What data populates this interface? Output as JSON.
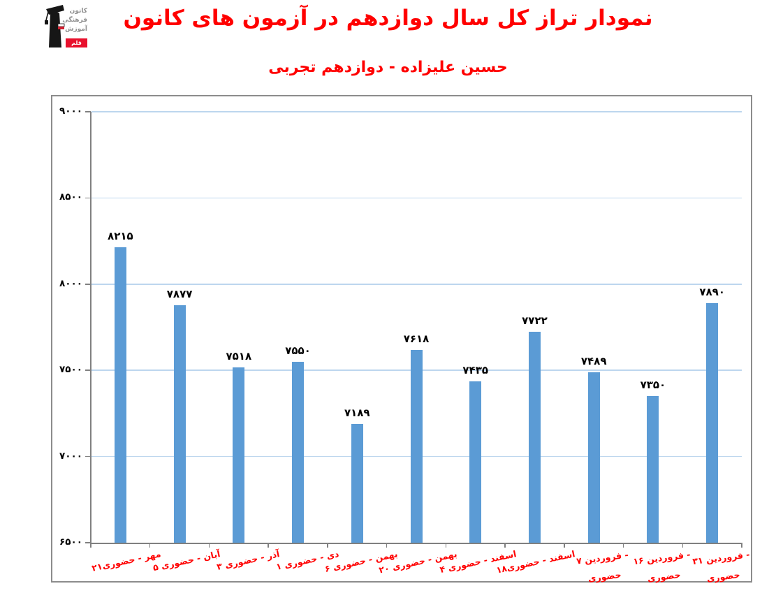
{
  "header": {
    "title": "نمودار تراز کل سال دوازدهم در آزمون های کانون",
    "subtitle": "حسین علیزاده - دوازدهم تجربی",
    "title_color": "#FF0000"
  },
  "logo": {
    "org_lines": [
      "کانون",
      "فرهنگی",
      "آموزش"
    ],
    "badge_text": "قلم چی",
    "badge_color": "#E8112D"
  },
  "chart_data": {
    "type": "bar",
    "title": "نمودار تراز کل سال دوازدهم در آزمون های کانون",
    "subtitle": "حسین علیزاده - دوازدهم تجربی",
    "xlabel": "",
    "ylabel": "",
    "categories": [
      "۲۱مهر - حضوری",
      "۵ آبان - حضوری",
      "۳ آذر - حضوری",
      "۱ دی - حضوری",
      "۶ بهمن - حضوری",
      "۲۰ بهمن - حضوری",
      "۴ اسفند - حضوری",
      "۱۸اسفند - حضوری",
      "۷ فروردین - حضوری",
      "۱۶ فروردین - حضوری",
      "۳۱ فروردین - حضوری"
    ],
    "category_lines": [
      [
        "۲۱مهر - حضوری"
      ],
      [
        "۵ آبان - حضوری"
      ],
      [
        "۳ آذر - حضوری"
      ],
      [
        "۱ دی - حضوری"
      ],
      [
        "۶ بهمن - حضوری"
      ],
      [
        "۲۰ بهمن - حضوری"
      ],
      [
        "۴ اسفند - حضوری"
      ],
      [
        "۱۸اسفند - حضوری"
      ],
      [
        "۷ فروردین -",
        "حضوری"
      ],
      [
        "۱۶ فروردین -",
        "حضوری"
      ],
      [
        "۳۱ فروردین -",
        "حضوری"
      ]
    ],
    "values": [
      8215,
      7877,
      7518,
      7550,
      7189,
      7618,
      7435,
      7722,
      7489,
      7350,
      7890
    ],
    "values_display": [
      "۸۲۱۵",
      "۷۸۷۷",
      "۷۵۱۸",
      "۷۵۵۰",
      "۷۱۸۹",
      "۷۶۱۸",
      "۷۴۳۵",
      "۷۷۲۲",
      "۷۴۸۹",
      "۷۳۵۰",
      "۷۸۹۰"
    ],
    "ylim": [
      6500,
      9000
    ],
    "ytick_values": [
      9000,
      8500,
      8000,
      7500,
      7000,
      6500
    ],
    "ytick_labels": [
      "۹۰۰۰",
      "۸۵۰۰",
      "۸۰۰۰",
      "۷۵۰۰",
      "۷۰۰۰",
      "۶۵۰۰"
    ],
    "grid": true,
    "legend": false,
    "bar_color": "#5B9BD5",
    "gridline_color": "#BDD6EE",
    "axis_color": "#808080",
    "category_label_color": "#FF0000",
    "value_label_color": "#000000"
  }
}
